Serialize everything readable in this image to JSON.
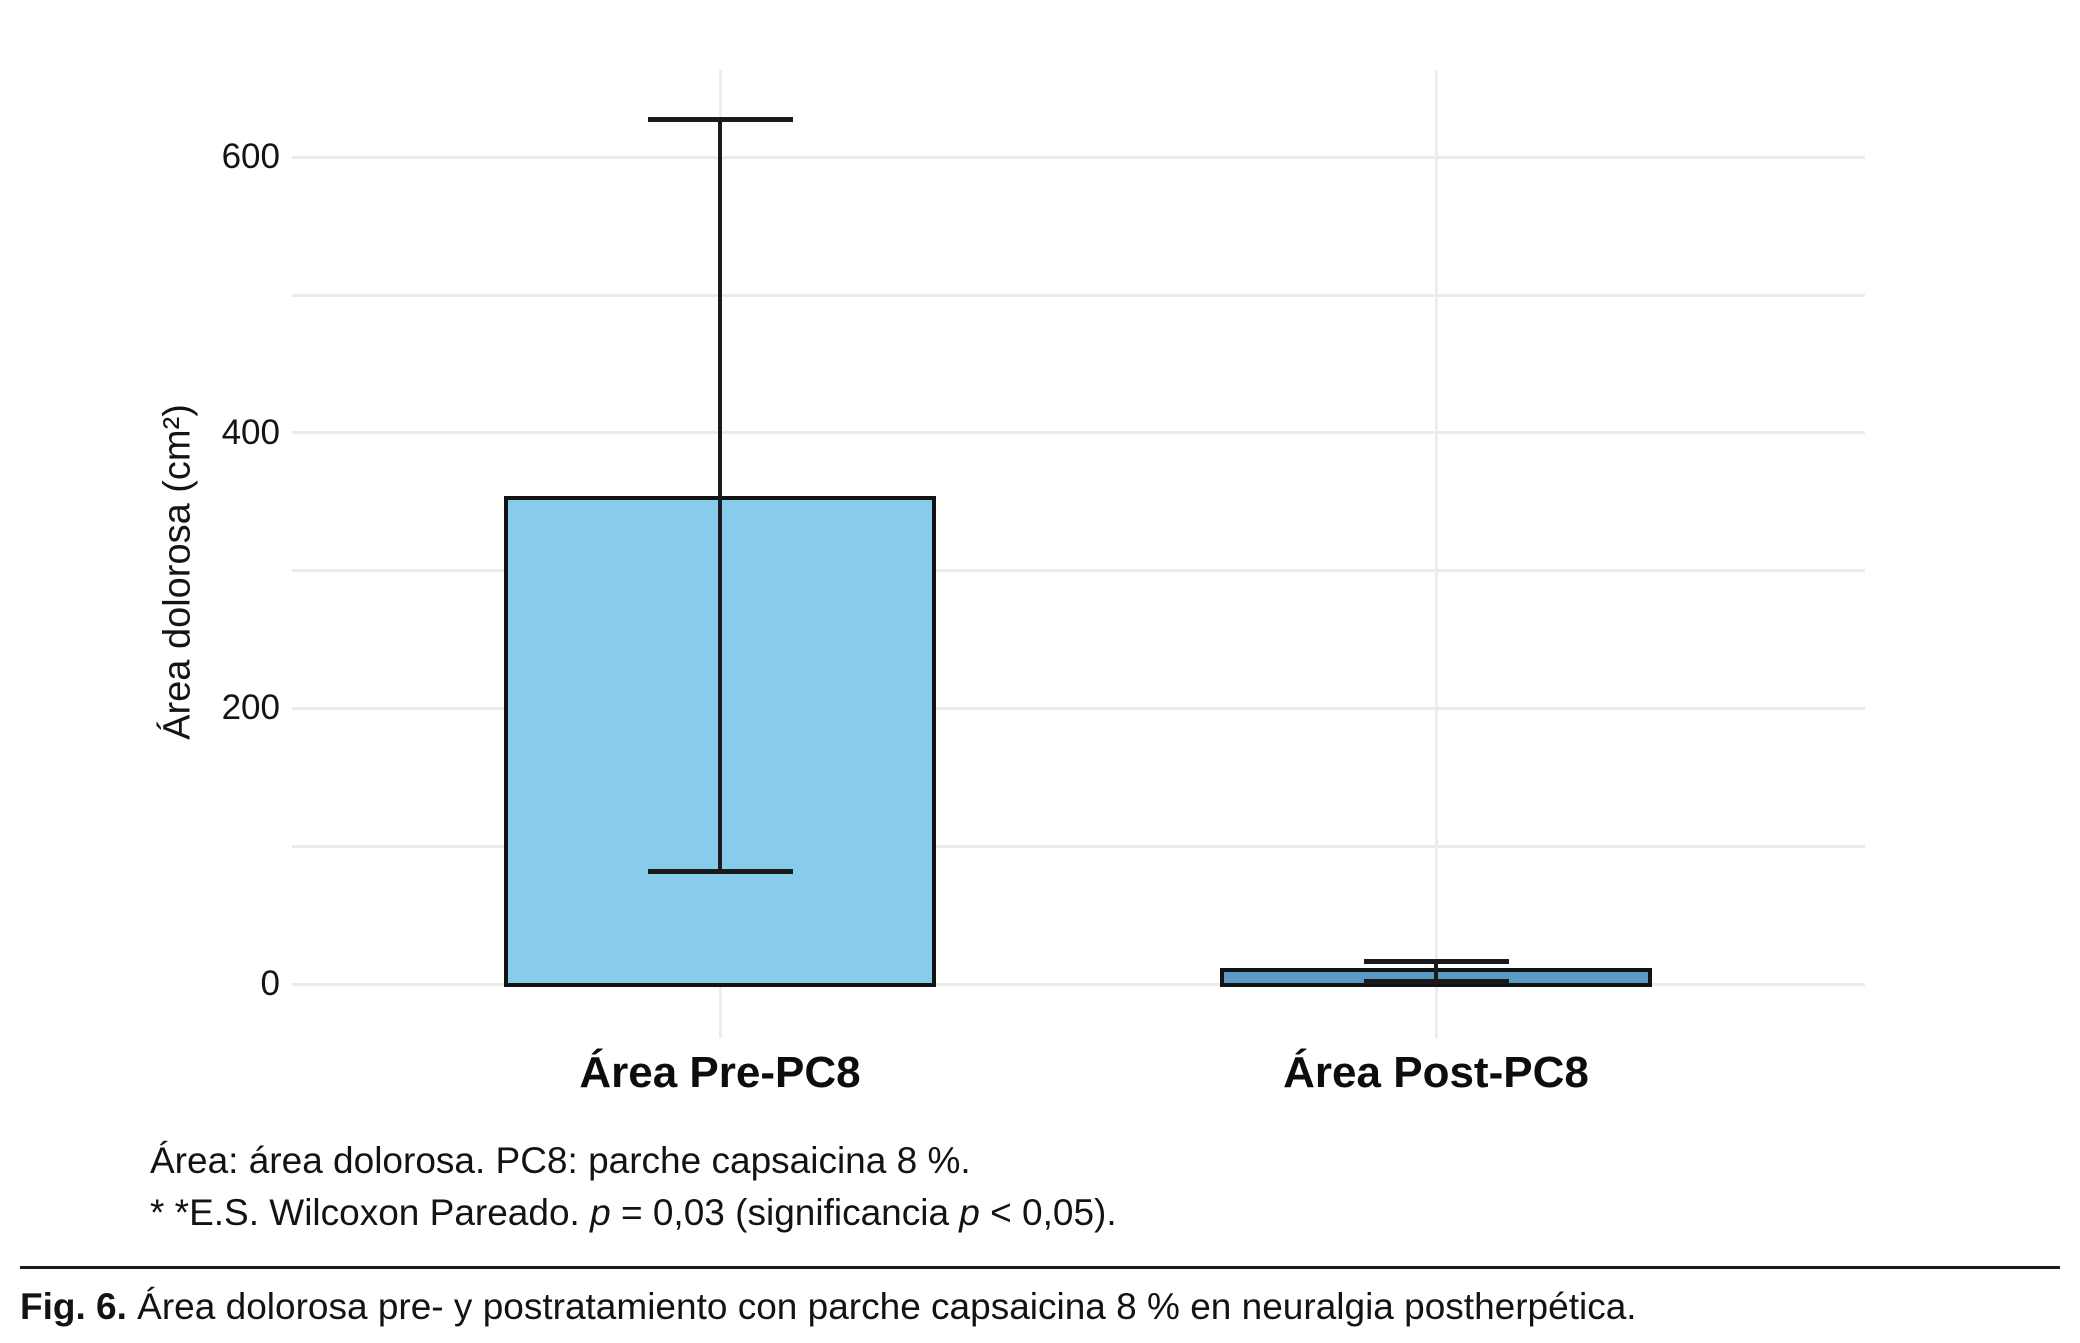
{
  "chart_data": {
    "type": "bar",
    "categories": [
      "Área Pre-PC8",
      "Área Post-PC8"
    ],
    "values": [
      353,
      10
    ],
    "error_low": [
      82,
      2
    ],
    "error_high": [
      628,
      17
    ],
    "bar_colors": [
      "rgba(126,200,233,0.93)",
      "#5b9ac4"
    ],
    "title": "",
    "xlabel": "",
    "ylabel": "Área dolorosa (cm²)",
    "ylim": [
      0,
      670
    ],
    "yticks": [
      0,
      200,
      400,
      600
    ],
    "ytick_labels": [
      "0",
      "200",
      "400",
      "600"
    ],
    "grid": true,
    "grid_step": 100,
    "legend_position": "none"
  },
  "colors": {
    "background": "#ffffff",
    "gridline": "#ebebeb",
    "bar_outline": "#131313",
    "error_bar": "#1a1a1a",
    "pre_bar_fill": "#8dcfec",
    "post_bar_fill": "#5b9ac4"
  },
  "footnotes": {
    "line1": "Área: área dolorosa. PC8: parche capsaicina 8 %.",
    "line2_segments": [
      {
        "text": "* *E.S. Wilcoxon Pareado. "
      },
      {
        "text": "p",
        "italic": true
      },
      {
        "text": " = 0,03 (significancia "
      },
      {
        "text": "p",
        "italic": true
      },
      {
        "text": " < 0,05)."
      }
    ]
  },
  "caption": {
    "segments": [
      {
        "text": "Fig. 6.",
        "bold": true
      },
      {
        "text": " Área dolorosa pre- y postratamiento con parche capsaicina 8 % en neuralgia postherpética.",
        "bold": false
      }
    ]
  }
}
